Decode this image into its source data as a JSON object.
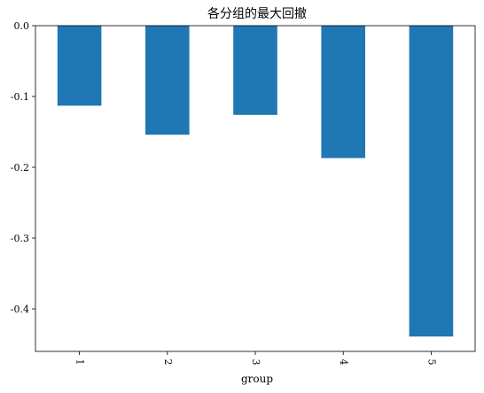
{
  "chart_data": {
    "type": "bar",
    "title": "各分组的最大回撤",
    "xlabel": "group",
    "ylabel": "",
    "categories": [
      "1",
      "2",
      "3",
      "4",
      "5"
    ],
    "values": [
      -0.113,
      -0.154,
      -0.126,
      -0.187,
      -0.439
    ],
    "ylim": [
      -0.46,
      0.0
    ],
    "yticks": [
      0.0,
      -0.1,
      -0.2,
      -0.3,
      -0.4
    ],
    "ytick_labels": [
      "0.0",
      "-0.1",
      "-0.2",
      "-0.3",
      "-0.4"
    ],
    "bar_color": "#1f77b4",
    "grid": false,
    "legend": "none"
  }
}
